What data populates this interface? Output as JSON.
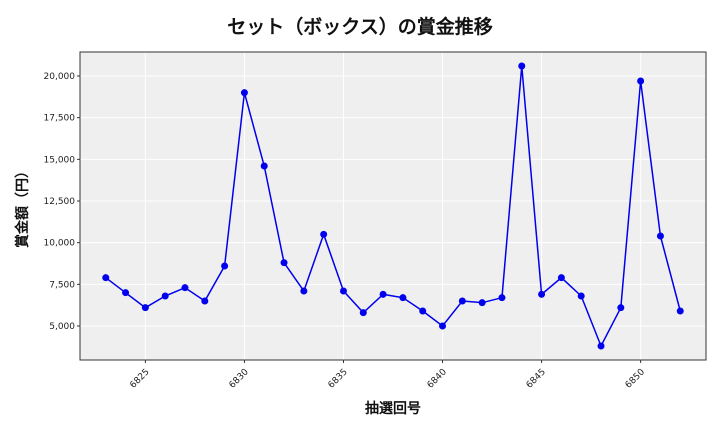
{
  "chart_data": {
    "type": "line",
    "title": "セット（ボックス）の賞金推移",
    "xlabel": "抽選回号",
    "ylabel": "賞金額（円）",
    "x": [
      6823,
      6824,
      6825,
      6826,
      6827,
      6828,
      6829,
      6830,
      6831,
      6832,
      6833,
      6834,
      6835,
      6836,
      6837,
      6838,
      6839,
      6840,
      6841,
      6842,
      6843,
      6844,
      6845,
      6846,
      6847,
      6848,
      6849,
      6850,
      6851,
      6852
    ],
    "series": [
      {
        "name": "セット（ボックス）",
        "color": "#0000ee",
        "values": [
          7900,
          7000,
          6100,
          6800,
          7300,
          6500,
          8600,
          19000,
          14600,
          8800,
          7100,
          10500,
          7100,
          5800,
          6900,
          6700,
          5900,
          5000,
          6500,
          6400,
          6700,
          20600,
          6900,
          7900,
          6800,
          3800,
          6100,
          19700,
          10400,
          5900
        ]
      }
    ],
    "xticks": [
      6825,
      6830,
      6835,
      6840,
      6845,
      6850
    ],
    "xtick_labels": [
      "6825",
      "6830",
      "6835",
      "6840",
      "6845",
      "6850"
    ],
    "yticks": [
      5000,
      7500,
      10000,
      12500,
      15000,
      17500,
      20000
    ],
    "ytick_labels": [
      "5,000",
      "7,500",
      "10,000",
      "12,500",
      "15,000",
      "17,500",
      "20,000"
    ],
    "xlim": [
      6821.7,
      6853.3
    ],
    "ylim": [
      2960,
      21440
    ],
    "grid": true,
    "background": "#efefef"
  }
}
